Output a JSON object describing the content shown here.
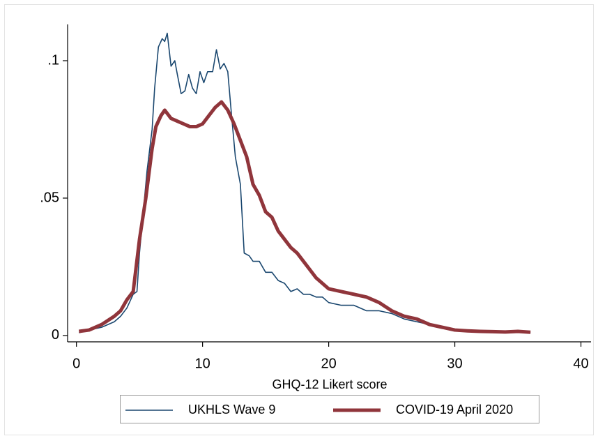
{
  "chart_data": {
    "type": "line",
    "x_label": "GHQ-12 Likert score",
    "xlim": [
      -0.7,
      40.8
    ],
    "ylim": [
      -0.0023,
      0.1132
    ],
    "xticks": [
      0,
      10,
      20,
      30,
      40
    ],
    "yticks": [
      0,
      {
        "value": 0.05,
        "label": ".05"
      },
      {
        "value": 0.1,
        "label": ".1"
      }
    ],
    "grid": false,
    "legend": "bottom",
    "series": [
      {
        "name": "UKHLS Wave 9",
        "color": "#1a476f",
        "line_width": 1.6,
        "x": [
          0.2,
          1,
          2,
          3,
          3.5,
          4,
          4.5,
          4.8,
          5,
          5.3,
          5.6,
          6,
          6.2,
          6.5,
          6.8,
          7,
          7.2,
          7.5,
          7.8,
          8,
          8.3,
          8.6,
          8.9,
          9.2,
          9.5,
          9.8,
          10.1,
          10.4,
          10.8,
          11.1,
          11.4,
          11.7,
          12,
          12.3,
          12.6,
          13,
          13.3,
          13.7,
          14,
          14.5,
          15,
          15.5,
          16,
          16.5,
          17,
          17.5,
          18,
          18.5,
          19,
          19.5,
          20,
          21,
          22,
          23,
          24,
          25,
          26,
          27,
          28,
          29,
          30,
          31,
          32,
          33,
          34,
          35,
          36
        ],
        "values": [
          0.001,
          0.002,
          0.003,
          0.005,
          0.007,
          0.01,
          0.015,
          0.016,
          0.03,
          0.045,
          0.06,
          0.075,
          0.09,
          0.105,
          0.108,
          0.107,
          0.11,
          0.098,
          0.1,
          0.095,
          0.088,
          0.089,
          0.095,
          0.09,
          0.088,
          0.096,
          0.092,
          0.096,
          0.096,
          0.104,
          0.097,
          0.099,
          0.096,
          0.08,
          0.065,
          0.055,
          0.03,
          0.029,
          0.027,
          0.027,
          0.023,
          0.023,
          0.02,
          0.019,
          0.016,
          0.017,
          0.015,
          0.015,
          0.014,
          0.014,
          0.012,
          0.011,
          0.011,
          0.009,
          0.009,
          0.008,
          0.006,
          0.005,
          0.004,
          0.003,
          0.002,
          0.0018,
          0.0015,
          0.0014,
          0.0012,
          0.0012,
          0.001
        ]
      },
      {
        "name": "COVID-19 April 2020",
        "color": "#90353b",
        "line_width": 5,
        "x": [
          0.2,
          1,
          2,
          3,
          3.5,
          4,
          4.5,
          5,
          5.5,
          6,
          6.3,
          6.7,
          7,
          7.5,
          8,
          8.5,
          9,
          9.5,
          10,
          10.5,
          11,
          11.5,
          12,
          12.5,
          13,
          13.5,
          14,
          14.5,
          15,
          15.5,
          16,
          16.5,
          17,
          17.5,
          18,
          18.5,
          19,
          19.5,
          20,
          21,
          22,
          23,
          24,
          25,
          26,
          27,
          28,
          29,
          30,
          31,
          32,
          33,
          34,
          35,
          36
        ],
        "values": [
          0.0015,
          0.002,
          0.004,
          0.007,
          0.009,
          0.013,
          0.016,
          0.035,
          0.05,
          0.068,
          0.076,
          0.08,
          0.082,
          0.079,
          0.078,
          0.077,
          0.076,
          0.076,
          0.077,
          0.08,
          0.083,
          0.085,
          0.082,
          0.077,
          0.071,
          0.065,
          0.055,
          0.051,
          0.045,
          0.043,
          0.038,
          0.035,
          0.032,
          0.03,
          0.027,
          0.024,
          0.021,
          0.019,
          0.017,
          0.016,
          0.015,
          0.014,
          0.012,
          0.009,
          0.007,
          0.006,
          0.004,
          0.003,
          0.002,
          0.0017,
          0.0015,
          0.0014,
          0.0013,
          0.0015,
          0.0012
        ]
      }
    ]
  }
}
